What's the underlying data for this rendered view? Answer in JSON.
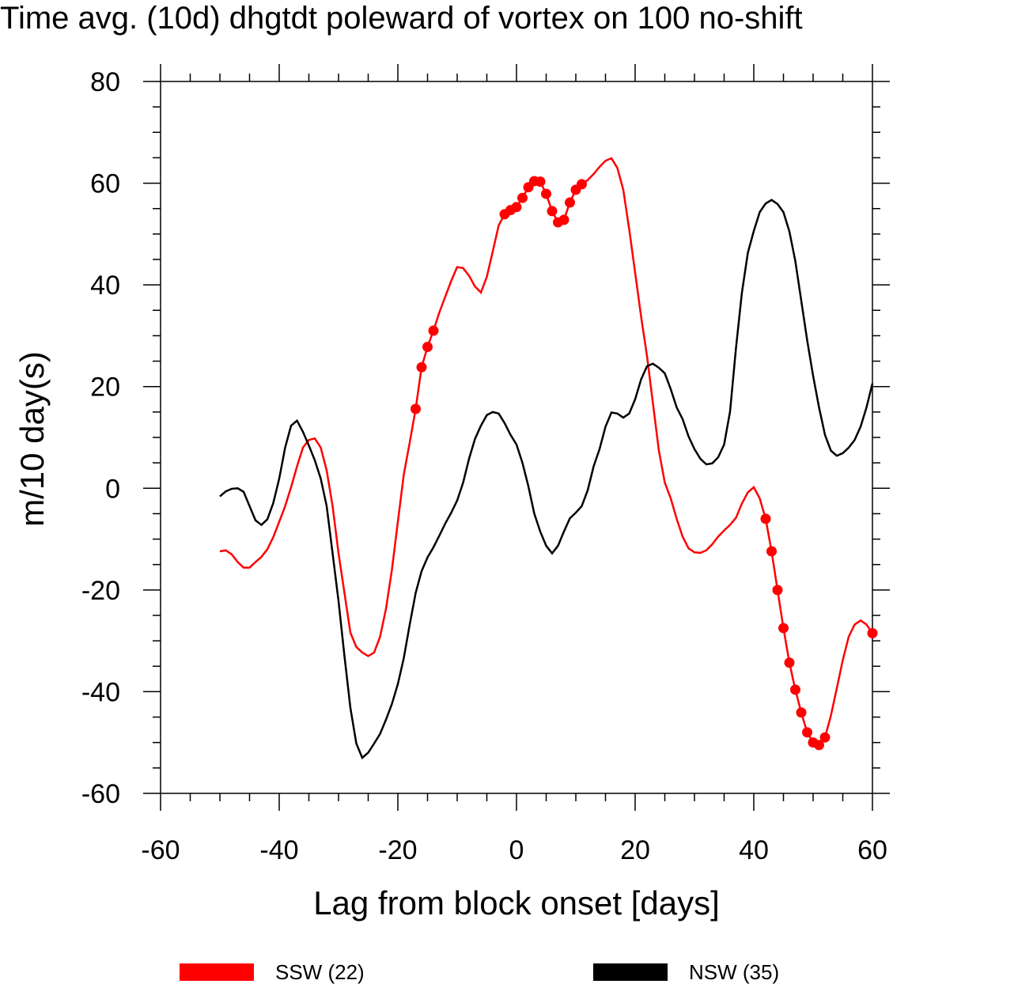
{
  "chart_data": {
    "type": "line",
    "title": "Time avg. (10d) dhgtdt poleward of vortex on 100 no-shift",
    "xlabel": "Lag from block onset [days]",
    "ylabel": "m/10 day(s)",
    "xlim": [
      -60,
      60
    ],
    "ylim": [
      -60,
      80
    ],
    "xticks": [
      -60,
      -40,
      -20,
      0,
      20,
      40,
      60
    ],
    "yticks": [
      -60,
      -40,
      -20,
      0,
      20,
      40,
      60,
      80
    ],
    "xminor_step": 5,
    "yminor_step": 5,
    "x": [
      -50,
      -49,
      -48,
      -47,
      -46,
      -45,
      -44,
      -43,
      -42,
      -41,
      -40,
      -39,
      -38,
      -37,
      -36,
      -35,
      -34,
      -33,
      -32,
      -31,
      -30,
      -29,
      -28,
      -27,
      -26,
      -25,
      -24,
      -23,
      -22,
      -21,
      -20,
      -19,
      -18,
      -17,
      -16,
      -15,
      -14,
      -13,
      -12,
      -11,
      -10,
      -9,
      -8,
      -7,
      -6,
      -5,
      -4,
      -3,
      -2,
      -1,
      0,
      1,
      2,
      3,
      4,
      5,
      6,
      7,
      8,
      9,
      10,
      11,
      12,
      13,
      14,
      15,
      16,
      17,
      18,
      19,
      20,
      21,
      22,
      23,
      24,
      25,
      26,
      27,
      28,
      29,
      30,
      31,
      32,
      33,
      34,
      35,
      36,
      37,
      38,
      39,
      40,
      41,
      42,
      43,
      44,
      45,
      46,
      47,
      48,
      49,
      50,
      51,
      52,
      53,
      54,
      55,
      56,
      57,
      58,
      59,
      60
    ],
    "series": [
      {
        "name": "SSW (22)",
        "color": "#ff0000",
        "values": [
          -12.4,
          -12.2,
          -13,
          -14.5,
          -15.6,
          -15.6,
          -14.5,
          -13.5,
          -12,
          -9.6,
          -6.6,
          -3.5,
          0.2,
          4.3,
          8,
          9.5,
          9.8,
          8,
          3.5,
          -3.5,
          -12.8,
          -20.6,
          -28.4,
          -31.2,
          -32.3,
          -33,
          -32.3,
          -29.2,
          -23.7,
          -16,
          -6.6,
          2.7,
          9,
          15.6,
          23.8,
          27.8,
          31,
          34.6,
          37.7,
          40.8,
          43.5,
          43.3,
          41.8,
          39.7,
          38.5,
          41.6,
          46.6,
          51.7,
          53.9,
          54.7,
          55.3,
          57.1,
          59.2,
          60.4,
          60.3,
          57.9,
          54.5,
          52.3,
          52.8,
          56.2,
          58.7,
          59.8,
          60.6,
          61.8,
          63.2,
          64.4,
          64.9,
          63,
          58.7,
          50.9,
          42.4,
          33.8,
          26,
          16.7,
          7.4,
          1.1,
          -2,
          -6,
          -9.5,
          -11.8,
          -12.6,
          -12.7,
          -12.2,
          -11,
          -9.5,
          -8.3,
          -7.2,
          -5.8,
          -3,
          -0.8,
          0.2,
          -2,
          -6,
          -12.4,
          -20,
          -27.5,
          -34.3,
          -39.6,
          -44.1,
          -48,
          -50,
          -50.5,
          -49,
          -44.7,
          -39.3,
          -33.8,
          -29.2,
          -26.8,
          -26,
          -26.8,
          -28.5
        ],
        "marker_x": [
          -17,
          -16,
          -15,
          -14,
          -2,
          -1,
          0,
          1,
          2,
          3,
          4,
          5,
          6,
          7,
          8,
          9,
          10,
          11,
          42,
          43,
          44,
          45,
          46,
          47,
          48,
          49,
          50,
          51,
          52,
          60
        ]
      },
      {
        "name": "NSW (35)",
        "color": "#000000",
        "values": [
          -1.6,
          -0.6,
          -0.1,
          0,
          -0.7,
          -3.5,
          -6.3,
          -7.2,
          -6.1,
          -2.9,
          1.9,
          8,
          12.3,
          13.3,
          11.1,
          8.4,
          5.5,
          1.9,
          -3.5,
          -12.8,
          -22.2,
          -33,
          -43.2,
          -50.2,
          -53,
          -52,
          -50.2,
          -48.3,
          -45.5,
          -42.4,
          -38.5,
          -33.4,
          -26.8,
          -20.6,
          -16.3,
          -13.6,
          -11.6,
          -9.3,
          -6.9,
          -4.8,
          -2.4,
          1.1,
          5.8,
          9.7,
          12.3,
          14.4,
          15,
          14.7,
          12.8,
          10.5,
          8.6,
          5,
          0.4,
          -5,
          -8.5,
          -11.3,
          -12.8,
          -11.3,
          -8.5,
          -5.9,
          -4.8,
          -3.5,
          -0.4,
          4.3,
          7.7,
          12.1,
          14.9,
          14.7,
          13.9,
          14.7,
          17.5,
          21.4,
          24,
          24.5,
          23.7,
          22.6,
          19.5,
          15.9,
          13.6,
          10.2,
          7.7,
          5.8,
          4.7,
          4.9,
          6.1,
          8.6,
          15.1,
          27.6,
          38.5,
          46.3,
          50.6,
          54.3,
          56,
          56.7,
          55.9,
          54.3,
          50.5,
          44.7,
          36.9,
          29.1,
          22.1,
          15.9,
          10.5,
          7.4,
          6.4,
          6.9,
          8,
          9.5,
          12.1,
          15.9,
          20.6
        ]
      }
    ]
  }
}
